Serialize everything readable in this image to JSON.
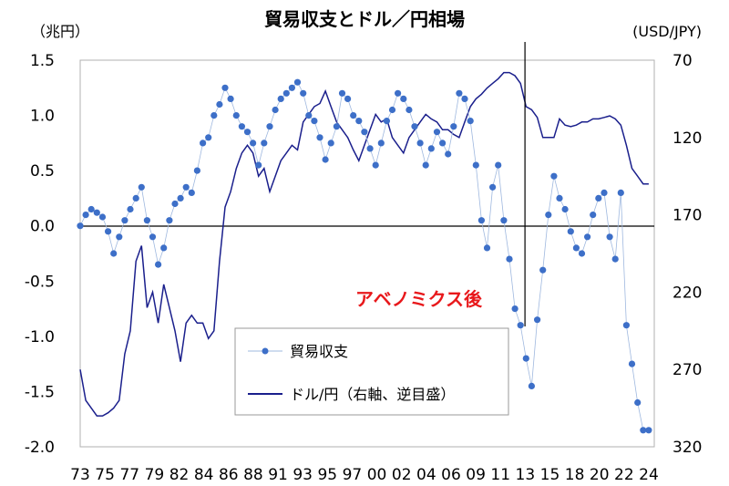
{
  "chart_data": {
    "type": "line",
    "title": "貿易収支とドル／円相場",
    "left_axis_unit": "（兆円）",
    "right_axis_unit": "(USD/JPY)",
    "left_ylim": [
      -2.0,
      1.5
    ],
    "left_ticks": [
      "1.5",
      "1.0",
      "0.5",
      "0.0",
      "-0.5",
      "-1.0",
      "-1.5",
      "-2.0"
    ],
    "right_ylim": [
      70,
      320
    ],
    "right_ticks": [
      "70",
      "120",
      "170",
      "220",
      "270",
      "320"
    ],
    "right_axis_inverted": true,
    "xlim": [
      1973,
      2024.5
    ],
    "x_ticks": [
      "73",
      "75",
      "77",
      "79",
      "82",
      "84",
      "86",
      "88",
      "91",
      "93",
      "95",
      "97",
      "00",
      "02",
      "04",
      "06",
      "09",
      "11",
      "13",
      "15",
      "18",
      "20",
      "22",
      "24"
    ],
    "annotation": "アベノミクス後",
    "marker_line_x": 2012.9,
    "series": [
      {
        "name": "貿易収支",
        "axis": "left",
        "color": "#3d6fc8",
        "x": [
          1973.0,
          1973.5,
          1974.0,
          1974.5,
          1975.0,
          1975.5,
          1976.0,
          1976.5,
          1977.0,
          1977.5,
          1978.0,
          1978.5,
          1979.0,
          1979.5,
          1980.0,
          1980.5,
          1981.0,
          1981.5,
          1982.0,
          1982.5,
          1983.0,
          1983.5,
          1984.0,
          1984.5,
          1985.0,
          1985.5,
          1986.0,
          1986.5,
          1987.0,
          1987.5,
          1988.0,
          1988.5,
          1989.0,
          1989.5,
          1990.0,
          1990.5,
          1991.0,
          1991.5,
          1992.0,
          1992.5,
          1993.0,
          1993.5,
          1994.0,
          1994.5,
          1995.0,
          1995.5,
          1996.0,
          1996.5,
          1997.0,
          1997.5,
          1998.0,
          1998.5,
          1999.0,
          1999.5,
          2000.0,
          2000.5,
          2001.0,
          2001.5,
          2002.0,
          2002.5,
          2003.0,
          2003.5,
          2004.0,
          2004.5,
          2005.0,
          2005.5,
          2006.0,
          2006.5,
          2007.0,
          2007.5,
          2008.0,
          2008.5,
          2009.0,
          2009.5,
          2010.0,
          2010.5,
          2011.0,
          2011.5,
          2012.0,
          2012.5,
          2013.0,
          2013.5,
          2014.0,
          2014.5,
          2015.0,
          2015.5,
          2016.0,
          2016.5,
          2017.0,
          2017.5,
          2018.0,
          2018.5,
          2019.0,
          2019.5,
          2020.0,
          2020.5,
          2021.0,
          2021.5,
          2022.0,
          2022.5,
          2023.0,
          2023.5,
          2024.0
        ],
        "values": [
          0.0,
          0.1,
          0.15,
          0.12,
          0.08,
          -0.05,
          -0.25,
          -0.1,
          0.05,
          0.15,
          0.25,
          0.35,
          0.05,
          -0.1,
          -0.35,
          -0.2,
          0.05,
          0.2,
          0.25,
          0.35,
          0.3,
          0.5,
          0.75,
          0.8,
          1.0,
          1.1,
          1.25,
          1.15,
          1.0,
          0.9,
          0.85,
          0.75,
          0.55,
          0.75,
          0.9,
          1.05,
          1.15,
          1.2,
          1.25,
          1.3,
          1.2,
          1.0,
          0.95,
          0.8,
          0.6,
          0.75,
          0.9,
          1.2,
          1.15,
          1.0,
          0.95,
          0.85,
          0.7,
          0.55,
          0.75,
          0.95,
          1.05,
          1.2,
          1.15,
          1.05,
          0.9,
          0.75,
          0.55,
          0.7,
          0.85,
          0.75,
          0.65,
          0.9,
          1.2,
          1.15,
          0.95,
          0.55,
          0.05,
          -0.2,
          0.35,
          0.55,
          0.05,
          -0.3,
          -0.75,
          -0.9,
          -1.2,
          -1.45,
          -0.85,
          -0.4,
          0.1,
          0.45,
          0.25,
          0.15,
          -0.05,
          -0.2,
          -0.25,
          -0.1,
          0.1,
          0.25,
          0.3,
          -0.1,
          -0.3,
          0.3,
          -0.9,
          -1.25,
          -1.6,
          -1.85,
          -1.85
        ]
      },
      {
        "name": "ドル/円（右軸、逆目盛）",
        "axis": "right",
        "color": "#1a1f8c",
        "x": [
          1973.0,
          1973.5,
          1974.0,
          1974.5,
          1975.0,
          1975.5,
          1976.0,
          1976.5,
          1977.0,
          1977.5,
          1978.0,
          1978.5,
          1979.0,
          1979.5,
          1980.0,
          1980.5,
          1981.0,
          1981.5,
          1982.0,
          1982.5,
          1983.0,
          1983.5,
          1984.0,
          1984.5,
          1985.0,
          1985.5,
          1986.0,
          1986.5,
          1987.0,
          1987.5,
          1988.0,
          1988.5,
          1989.0,
          1989.5,
          1990.0,
          1990.5,
          1991.0,
          1991.5,
          1992.0,
          1992.5,
          1993.0,
          1993.5,
          1994.0,
          1994.5,
          1995.0,
          1995.5,
          1996.0,
          1996.5,
          1997.0,
          1997.5,
          1998.0,
          1998.5,
          1999.0,
          1999.5,
          2000.0,
          2000.5,
          2001.0,
          2001.5,
          2002.0,
          2002.5,
          2003.0,
          2003.5,
          2004.0,
          2004.5,
          2005.0,
          2005.5,
          2006.0,
          2006.5,
          2007.0,
          2007.5,
          2008.0,
          2008.5,
          2009.0,
          2009.5,
          2010.0,
          2010.5,
          2011.0,
          2011.5,
          2012.0,
          2012.5,
          2013.0,
          2013.5,
          2014.0,
          2014.5,
          2015.0,
          2015.5,
          2016.0,
          2016.5,
          2017.0,
          2017.5,
          2018.0,
          2018.5,
          2019.0,
          2019.5,
          2020.0,
          2020.5,
          2021.0,
          2021.5,
          2022.0,
          2022.5,
          2023.0,
          2023.5,
          2024.0
        ],
        "values": [
          270,
          290,
          295,
          300,
          300,
          298,
          295,
          290,
          260,
          245,
          200,
          190,
          230,
          220,
          240,
          215,
          230,
          245,
          265,
          240,
          235,
          240,
          240,
          250,
          245,
          200,
          165,
          155,
          140,
          130,
          125,
          130,
          145,
          140,
          155,
          145,
          135,
          130,
          125,
          128,
          110,
          105,
          100,
          98,
          90,
          100,
          110,
          115,
          120,
          128,
          135,
          125,
          115,
          105,
          110,
          108,
          120,
          125,
          130,
          120,
          115,
          110,
          105,
          108,
          110,
          115,
          115,
          118,
          120,
          110,
          100,
          95,
          92,
          88,
          85,
          82,
          78,
          78,
          80,
          85,
          100,
          102,
          107,
          120,
          120,
          120,
          108,
          112,
          113,
          112,
          110,
          110,
          108,
          108,
          107,
          106,
          108,
          112,
          125,
          140,
          145,
          150,
          150
        ]
      }
    ]
  }
}
